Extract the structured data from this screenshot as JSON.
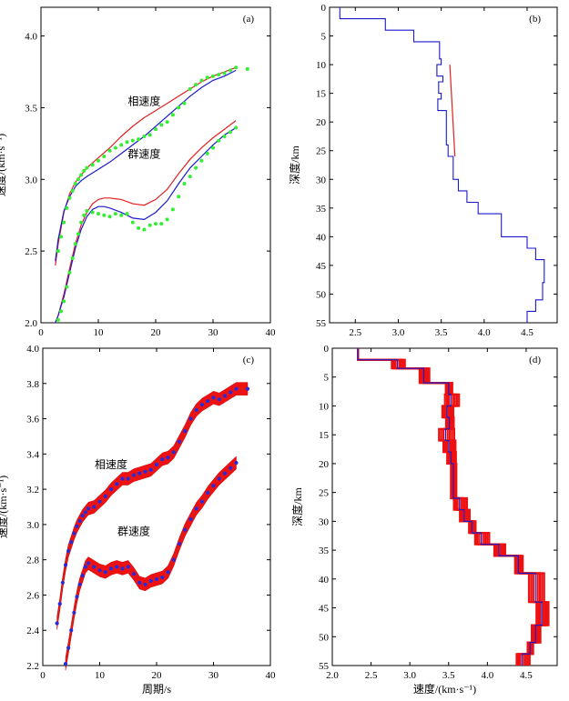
{
  "chart_data": [
    {
      "panel": "a",
      "type": "line",
      "panel_label": "(a)",
      "ylabel": "速度/(km·s⁻¹)",
      "xlim": [
        0,
        40
      ],
      "ylim": [
        2.0,
        4.2
      ],
      "xticks": [
        0,
        10,
        20,
        30,
        40
      ],
      "yticks": [
        2.0,
        2.5,
        3.0,
        3.5,
        4.0
      ],
      "annotations": [
        "相速度",
        "群速度"
      ],
      "series": [
        {
          "name": "phase-red",
          "color": "#e02020",
          "kind": "line",
          "x": [
            2.5,
            3,
            4,
            5,
            6,
            7,
            8,
            10,
            12,
            14,
            16,
            18,
            20,
            22,
            24,
            26,
            28,
            30,
            32,
            34
          ],
          "y": [
            2.4,
            2.55,
            2.77,
            2.9,
            2.98,
            3.03,
            3.08,
            3.15,
            3.22,
            3.3,
            3.37,
            3.43,
            3.48,
            3.53,
            3.58,
            3.63,
            3.68,
            3.72,
            3.75,
            3.78
          ]
        },
        {
          "name": "phase-blue",
          "color": "#1a1acc",
          "kind": "line",
          "x": [
            2.5,
            3,
            4,
            5,
            6,
            7,
            8,
            10,
            12,
            14,
            16,
            18,
            20,
            22,
            24,
            26,
            28,
            30,
            32,
            34
          ],
          "y": [
            2.43,
            2.58,
            2.78,
            2.88,
            2.95,
            2.99,
            3.02,
            3.07,
            3.12,
            3.18,
            3.24,
            3.3,
            3.37,
            3.44,
            3.51,
            3.58,
            3.64,
            3.69,
            3.72,
            3.76
          ]
        },
        {
          "name": "group-red",
          "color": "#e02020",
          "kind": "line",
          "x": [
            2.5,
            3,
            4,
            5,
            6,
            7,
            8,
            9,
            10,
            11,
            12,
            14,
            16,
            18,
            20,
            22,
            24,
            26,
            28,
            30,
            32,
            34
          ],
          "y": [
            2.0,
            2.05,
            2.2,
            2.38,
            2.55,
            2.68,
            2.77,
            2.83,
            2.86,
            2.87,
            2.87,
            2.86,
            2.83,
            2.82,
            2.86,
            2.93,
            3.04,
            3.14,
            3.22,
            3.29,
            3.35,
            3.41
          ]
        },
        {
          "name": "group-blue",
          "color": "#1a1acc",
          "kind": "line",
          "x": [
            2.5,
            3,
            4,
            5,
            6,
            7,
            8,
            9,
            10,
            11,
            12,
            14,
            16,
            18,
            20,
            22,
            24,
            26,
            28,
            30,
            32,
            34
          ],
          "y": [
            2.0,
            2.05,
            2.18,
            2.35,
            2.52,
            2.65,
            2.74,
            2.79,
            2.81,
            2.81,
            2.8,
            2.77,
            2.73,
            2.72,
            2.77,
            2.85,
            2.97,
            3.08,
            3.16,
            3.24,
            3.31,
            3.36
          ]
        },
        {
          "name": "phase-obs",
          "color": "#33ee33",
          "kind": "scatter",
          "x": [
            3,
            3.5,
            4,
            4.5,
            5,
            5.5,
            6,
            6.5,
            7,
            7.5,
            8,
            9,
            10,
            11,
            12,
            13,
            14,
            15,
            16,
            17,
            18,
            19,
            20,
            21,
            22,
            23,
            24,
            25,
            26,
            27,
            28,
            29,
            30,
            31,
            32,
            33,
            34,
            36
          ],
          "y": [
            2.5,
            2.6,
            2.7,
            2.8,
            2.87,
            2.92,
            2.97,
            3.0,
            3.03,
            3.06,
            3.08,
            3.1,
            3.13,
            3.16,
            3.2,
            3.22,
            3.24,
            3.26,
            3.27,
            3.28,
            3.3,
            3.31,
            3.35,
            3.38,
            3.4,
            3.45,
            3.5,
            3.53,
            3.63,
            3.66,
            3.69,
            3.71,
            3.72,
            3.73,
            3.74,
            3.76,
            3.78,
            3.77
          ]
        },
        {
          "name": "group-obs",
          "color": "#33ee33",
          "kind": "scatter",
          "x": [
            3,
            3.5,
            4,
            4.5,
            5,
            5.5,
            6,
            6.5,
            7,
            7.5,
            8,
            9,
            10,
            11,
            12,
            13,
            14,
            15,
            16,
            17,
            18,
            19,
            20,
            21,
            22,
            23,
            24,
            25,
            26,
            27,
            28,
            29,
            30,
            31,
            32,
            33,
            34
          ],
          "y": [
            2.02,
            2.08,
            2.15,
            2.25,
            2.35,
            2.45,
            2.55,
            2.62,
            2.7,
            2.75,
            2.78,
            2.77,
            2.76,
            2.75,
            2.74,
            2.76,
            2.75,
            2.76,
            2.7,
            2.66,
            2.65,
            2.68,
            2.69,
            2.69,
            2.72,
            2.79,
            2.88,
            2.97,
            3.02,
            3.08,
            3.13,
            3.18,
            3.22,
            3.27,
            3.3,
            3.33,
            3.36
          ]
        }
      ]
    },
    {
      "panel": "b",
      "type": "line",
      "panel_label": "(b)",
      "ylabel": "深度/km",
      "xlim": [
        2.2,
        4.85
      ],
      "ylim": [
        0,
        55
      ],
      "xticks": [
        2.5,
        3.0,
        3.5,
        4.0,
        4.5
      ],
      "yticks": [
        0,
        5,
        10,
        15,
        20,
        25,
        30,
        35,
        40,
        45,
        50,
        55
      ],
      "series": [
        {
          "name": "model-blue",
          "color": "#1a1acc",
          "kind": "step",
          "v": [
            2.32,
            2.85,
            3.18,
            3.48,
            3.5,
            3.45,
            3.52,
            3.47,
            3.5,
            3.46,
            3.56,
            3.58,
            3.64,
            3.7,
            3.8,
            3.93,
            4.2,
            4.5,
            4.6,
            4.7,
            4.68,
            4.6,
            4.5
          ],
          "z": [
            0,
            2,
            4,
            6,
            9,
            10,
            12,
            13,
            15,
            16,
            18,
            24,
            26,
            30,
            32,
            34,
            36,
            40,
            42,
            44,
            48,
            51,
            53,
            55
          ]
        },
        {
          "name": "model-red",
          "color": "#e02020",
          "kind": "line",
          "v": [
            3.6,
            3.66
          ],
          "z": [
            10,
            26
          ]
        }
      ]
    },
    {
      "panel": "c",
      "type": "line",
      "panel_label": "(c)",
      "xlabel": "周期/s",
      "ylabel": "速度/(km·s⁻¹)",
      "xlim": [
        0,
        40
      ],
      "ylim": [
        2.2,
        4.0
      ],
      "xticks": [
        0,
        10,
        20,
        30,
        40
      ],
      "yticks": [
        2.2,
        2.4,
        2.6,
        2.8,
        3.0,
        3.2,
        3.4,
        3.6,
        3.8,
        4.0
      ],
      "annotations": [
        "相速度",
        "群速度"
      ],
      "series": [
        {
          "name": "phase-obs",
          "color": "#2a2ad8",
          "kind": "band",
          "x": [
            2.5,
            3,
            3.5,
            4,
            4.5,
            5,
            5.5,
            6,
            6.5,
            7,
            7.5,
            8,
            9,
            10,
            11,
            12,
            13,
            14,
            15,
            16,
            17,
            18,
            19,
            20,
            21,
            22,
            23,
            24,
            25,
            26,
            27,
            28,
            29,
            30,
            31,
            32,
            33,
            34,
            36
          ],
          "y": [
            2.44,
            2.55,
            2.67,
            2.77,
            2.85,
            2.9,
            2.95,
            2.99,
            3.02,
            3.05,
            3.07,
            3.09,
            3.1,
            3.13,
            3.16,
            3.2,
            3.23,
            3.26,
            3.26,
            3.28,
            3.29,
            3.3,
            3.31,
            3.34,
            3.37,
            3.38,
            3.41,
            3.47,
            3.53,
            3.6,
            3.65,
            3.68,
            3.7,
            3.72,
            3.71,
            3.73,
            3.75,
            3.77,
            3.77
          ]
        },
        {
          "name": "group-obs",
          "color": "#2a2ad8",
          "kind": "band",
          "x": [
            4,
            4.5,
            5,
            5.5,
            6,
            6.5,
            7,
            7.5,
            8,
            9,
            10,
            11,
            12,
            13,
            14,
            15,
            16,
            17,
            18,
            19,
            20,
            21,
            22,
            23,
            24,
            25,
            26,
            27,
            28,
            29,
            30,
            31,
            32,
            33,
            34
          ],
          "y": [
            2.21,
            2.3,
            2.4,
            2.5,
            2.59,
            2.66,
            2.71,
            2.76,
            2.78,
            2.76,
            2.74,
            2.73,
            2.75,
            2.76,
            2.75,
            2.76,
            2.72,
            2.67,
            2.66,
            2.68,
            2.69,
            2.7,
            2.73,
            2.8,
            2.89,
            2.97,
            3.03,
            3.09,
            3.13,
            3.18,
            3.22,
            3.26,
            3.29,
            3.32,
            3.35
          ]
        }
      ]
    },
    {
      "panel": "d",
      "type": "line",
      "panel_label": "(d)",
      "xlabel": "速度/(km·s⁻¹)",
      "ylabel": "深度/km",
      "xlim": [
        2.0,
        4.9
      ],
      "ylim": [
        0,
        55
      ],
      "xticks": [
        2.0,
        2.5,
        3.0,
        3.5,
        4.0,
        4.5
      ],
      "yticks": [
        0,
        5,
        10,
        15,
        20,
        25,
        30,
        35,
        40,
        45,
        50,
        55
      ],
      "series": [
        {
          "name": "models",
          "color": "#1a1acc",
          "kind": "step-ensemble",
          "v": [
            2.33,
            2.84,
            3.18,
            3.5,
            3.53,
            3.48,
            3.51,
            3.46,
            3.5,
            3.53,
            3.56,
            3.64,
            3.7,
            3.8,
            3.92,
            4.15,
            4.4,
            4.62,
            4.7,
            4.62,
            4.55,
            4.45
          ],
          "z": [
            0,
            2,
            3.5,
            6,
            8,
            10,
            12,
            14,
            16,
            18,
            20,
            26,
            28,
            30,
            32,
            34,
            36,
            39,
            44,
            48,
            51,
            53,
            55
          ]
        }
      ]
    }
  ]
}
